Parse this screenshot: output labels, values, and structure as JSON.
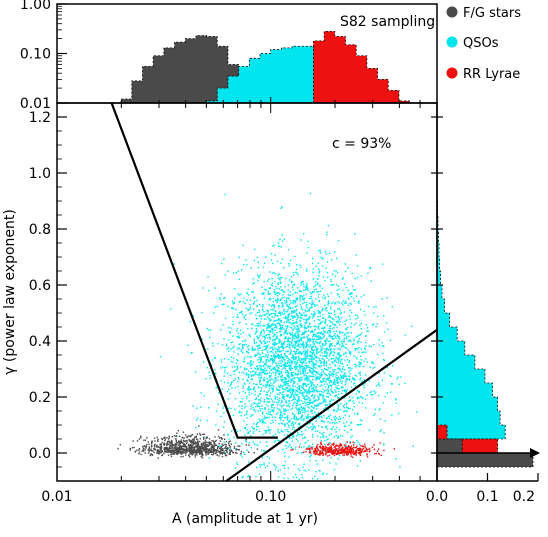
{
  "chart_data": {
    "type": "scatter",
    "top_histogram": {
      "yscale": "log",
      "ylim": [
        0.01,
        1.0
      ],
      "y_ticks": [
        "0.01",
        "0.10",
        "1.00"
      ],
      "annotation": "S82 sampling",
      "series": [
        {
          "name": "F/G stars",
          "color": "#4a4a4a",
          "bins_logA": [
            -1.7,
            -1.65,
            -1.6,
            -1.55,
            -1.5,
            -1.45,
            -1.4,
            -1.35,
            -1.3,
            -1.25,
            -1.2,
            -1.15
          ],
          "values": [
            0.012,
            0.028,
            0.055,
            0.09,
            0.13,
            0.17,
            0.2,
            0.23,
            0.22,
            0.14,
            0.06,
            0.02
          ]
        },
        {
          "name": "QSOs",
          "color": "#00e5ee",
          "bins_logA": [
            -1.3,
            -1.25,
            -1.2,
            -1.15,
            -1.1,
            -1.05,
            -1.0,
            -0.95,
            -0.9,
            -0.85,
            -0.8,
            -0.75,
            -0.7,
            -0.65,
            -0.6,
            -0.55,
            -0.5
          ],
          "values": [
            0.011,
            0.02,
            0.035,
            0.055,
            0.08,
            0.1,
            0.12,
            0.13,
            0.14,
            0.14,
            0.13,
            0.11,
            0.085,
            0.06,
            0.035,
            0.018,
            0.011
          ]
        },
        {
          "name": "RR Lyrae",
          "color": "#ee1111",
          "bins_logA": [
            -0.8,
            -0.75,
            -0.7,
            -0.65,
            -0.6,
            -0.55,
            -0.5,
            -0.45,
            -0.4
          ],
          "values": [
            0.18,
            0.28,
            0.22,
            0.15,
            0.09,
            0.05,
            0.03,
            0.018,
            0.011
          ]
        }
      ]
    },
    "main_scatter": {
      "xscale": "log",
      "xlim": [
        0.01,
        0.6
      ],
      "ylim": [
        -0.1,
        1.25
      ],
      "x_ticks": [
        "0.01",
        "0.10"
      ],
      "y_ticks": [
        "0.0",
        "0.2",
        "0.4",
        "0.6",
        "0.8",
        "1.0",
        "1.2"
      ],
      "xlabel": "A (amplitude at 1 yr)",
      "ylabel": "γ (power law exponent)",
      "annotation": "c = 93%",
      "selection_boundary": {
        "vertices": [
          [
            0.018,
            1.25
          ],
          [
            0.07,
            0.055
          ],
          [
            0.108,
            0.055
          ]
        ],
        "line_to_edge": [
          [
            0.062,
            -0.1
          ],
          [
            0.6,
            0.44
          ]
        ]
      },
      "clusters": [
        {
          "name": "QSOs",
          "color": "#00e5ee",
          "n": 3800,
          "logA_mean": -0.88,
          "logA_sd": 0.17,
          "gamma_mean": 0.32,
          "gamma_sd": 0.17
        },
        {
          "name": "F/G stars",
          "color": "#4a4a4a",
          "n": 900,
          "logA_mean": -1.38,
          "logA_sd": 0.11,
          "gamma_mean": 0.02,
          "gamma_sd": 0.04
        },
        {
          "name": "RR Lyrae",
          "color": "#ee1111",
          "n": 400,
          "logA_mean": -0.68,
          "logA_sd": 0.08,
          "gamma_mean": 0.01,
          "gamma_sd": 0.02
        }
      ]
    },
    "right_histogram": {
      "xlim": [
        0.0,
        0.2
      ],
      "x_ticks": [
        "0.0",
        "0.1",
        "0.2"
      ],
      "series": [
        {
          "name": "QSOs",
          "color": "#00e5ee",
          "bins_gamma": [
            0.05,
            0.1,
            0.15,
            0.2,
            0.25,
            0.3,
            0.35,
            0.4,
            0.45,
            0.5,
            0.55,
            0.6,
            0.65,
            0.7,
            0.75,
            0.8,
            0.85
          ],
          "values": [
            0.135,
            0.125,
            0.12,
            0.11,
            0.095,
            0.075,
            0.055,
            0.04,
            0.025,
            0.015,
            0.01,
            0.007,
            0.005,
            0.004,
            0.003,
            0.002,
            0.001
          ]
        },
        {
          "name": "RR Lyrae",
          "color": "#ee1111",
          "bins_gamma": [
            0.0,
            0.05
          ],
          "values": [
            0.12,
            0.02
          ]
        },
        {
          "name": "F/G stars",
          "color": "#4a4a4a",
          "bins_gamma": [
            -0.05,
            0.0
          ],
          "values": [
            0.19,
            0.05
          ]
        }
      ]
    },
    "legend": {
      "placement": "top-right",
      "entries": [
        {
          "label": "F/G stars",
          "color": "#4a4a4a"
        },
        {
          "label": "QSOs",
          "color": "#00e5ee"
        },
        {
          "label": "RR Lyrae",
          "color": "#ee1111"
        }
      ]
    }
  }
}
